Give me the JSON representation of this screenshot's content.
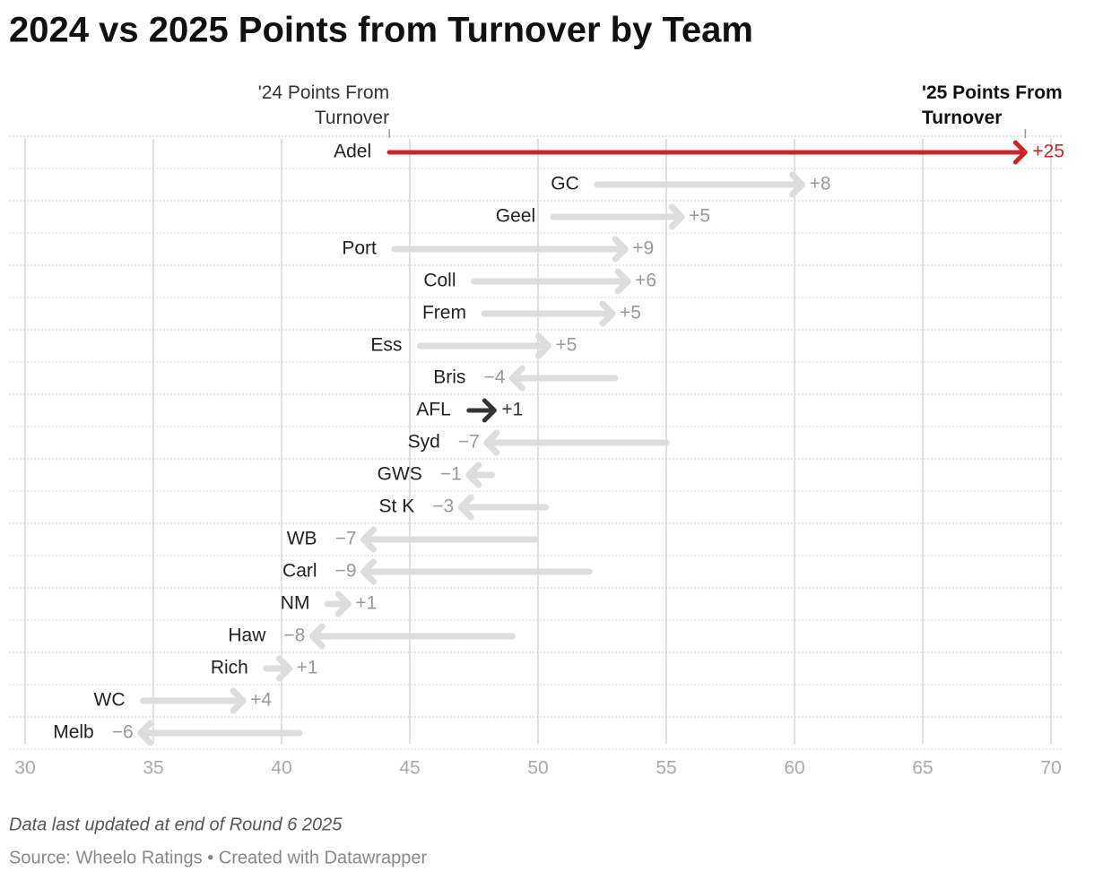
{
  "chart_data": {
    "type": "arrow",
    "title": "2024 vs 2025 Points from Turnover by Team",
    "categories": [
      "Adel",
      "GC",
      "Geel",
      "Port",
      "Coll",
      "Frem",
      "Ess",
      "Bris",
      "AFL",
      "Syd",
      "GWS",
      "St K",
      "WB",
      "Carl",
      "NM",
      "Haw",
      "Rich",
      "WC",
      "Melb"
    ],
    "series": [
      {
        "name": "'24 Points From Turnover",
        "values": [
          44.2,
          52.3,
          50.6,
          44.4,
          47.5,
          47.9,
          45.4,
          53.0,
          47.3,
          55.0,
          48.2,
          50.3,
          49.9,
          52.0,
          41.8,
          49.0,
          39.4,
          34.6,
          40.7
        ]
      },
      {
        "name": "'25 Points From Turnover",
        "values": [
          69.0,
          60.3,
          55.6,
          53.4,
          53.5,
          52.9,
          50.4,
          49.0,
          48.3,
          48.0,
          47.3,
          47.0,
          43.2,
          43.2,
          42.6,
          41.2,
          40.3,
          38.5,
          34.5
        ]
      }
    ],
    "change": {
      "values": [
        25,
        8,
        5,
        9,
        6,
        5,
        5,
        -4,
        1,
        -7,
        -1,
        -3,
        -7,
        -9,
        1,
        -8,
        1,
        4,
        -6
      ],
      "value_labels": [
        "+25",
        "+8",
        "+5",
        "+9",
        "+6",
        "+5",
        "+5",
        "−4",
        "+1",
        "−7",
        "−1",
        "−3",
        "−7",
        "−9",
        "+1",
        "−8",
        "+1",
        "+4",
        "−6"
      ]
    },
    "colors": [
      "#c62828",
      "#dddddd",
      "#dddddd",
      "#dddddd",
      "#dddddd",
      "#dddddd",
      "#dddddd",
      "#dddddd",
      "#333333",
      "#dddddd",
      "#dddddd",
      "#dddddd",
      "#dddddd",
      "#dddddd",
      "#dddddd",
      "#dddddd",
      "#dddddd",
      "#dddddd",
      "#dddddd"
    ],
    "xlim": [
      30,
      70
    ],
    "xticks": [
      30,
      35,
      40,
      45,
      50,
      55,
      60,
      65,
      70
    ],
    "grid": true,
    "note": "Data last updated at end of Round 6 2025",
    "source": "Source: Wheelo Ratings • Created with Datawrapper"
  }
}
